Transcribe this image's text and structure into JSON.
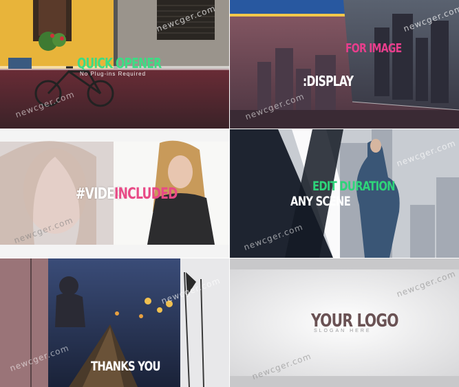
{
  "scenes": {
    "one": {
      "title": "QUICK OPENER",
      "subtitle": "No Plug-ins Required",
      "title_color": "#3ddc84"
    },
    "two": {
      "pink_text": "FOR IMAGE",
      "white_text": ":DISPLAY",
      "pink_color": "#e83e8c"
    },
    "three": {
      "white_text": "#VIDEO",
      "pink_text": "INCLUDED",
      "pink_color": "#e84a86"
    },
    "four": {
      "green_text": "EDIT DURATION",
      "white_text": "ANY SCENE",
      "green_color": "#2ed47a"
    },
    "five": {
      "text": "THANKS YOU"
    },
    "six": {
      "logo": "YOUR LOGO",
      "slogan": "SLOGAN HERE"
    }
  },
  "watermark": {
    "text": "newcger.com"
  }
}
